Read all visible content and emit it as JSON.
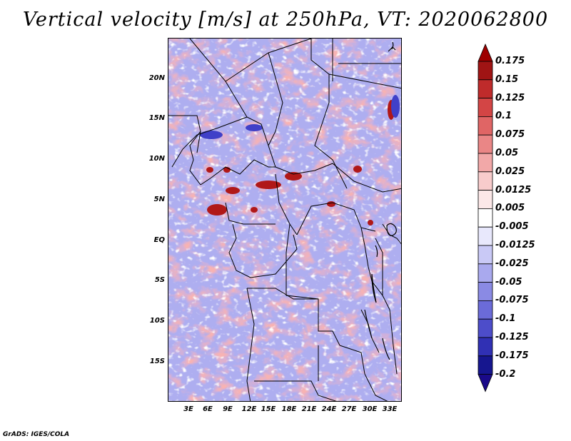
{
  "title": "Vertical velocity [m/s] at 250hPa, VT: 2020062800",
  "credit": "GrADS: IGES/COLA",
  "lat_labels": [
    "20N",
    "15N",
    "10N",
    "5N",
    "EQ",
    "5S",
    "10S",
    "15S"
  ],
  "lon_labels": [
    "3E",
    "6E",
    "9E",
    "12E",
    "15E",
    "18E",
    "21E",
    "24E",
    "27E",
    "30E",
    "33E"
  ],
  "colorbar": {
    "labels": [
      "0.175",
      "0.15",
      "0.125",
      "0.1",
      "0.075",
      "0.05",
      "0.025",
      "0.0125",
      "0.005",
      "-0.005",
      "-0.0125",
      "-0.025",
      "-0.05",
      "-0.075",
      "-0.1",
      "-0.125",
      "-0.175",
      "-0.2"
    ],
    "colors": [
      "#7f0000",
      "#a01414",
      "#bf2b2b",
      "#d34545",
      "#e06565",
      "#ea8686",
      "#f2a8a8",
      "#f8cccc",
      "#fce8e8",
      "#ffffff",
      "#e8e8fc",
      "#c9c9f6",
      "#a9a9ee",
      "#8a8ae4",
      "#6b6bd8",
      "#4d4dca",
      "#3030b4",
      "#16168f",
      "#08086a"
    ],
    "top_arrow_color": "#9e0000",
    "bottom_arrow_color": "#1a0a8a"
  },
  "map_colors": {
    "dominant_negative": "#a9a9ee",
    "dominant_positive": "#ea8686",
    "border_color": "#000000"
  }
}
